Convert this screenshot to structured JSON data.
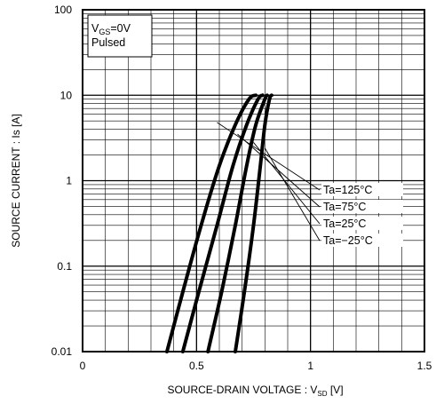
{
  "chart_data": {
    "type": "line",
    "x_scale": "linear",
    "y_scale": "log",
    "xlim": [
      0,
      1.5
    ],
    "ylim": [
      0.01,
      100
    ],
    "xlabel_main": "SOURCE-DRAIN VOLTAGE : V",
    "xlabel_sub": "SD",
    "xlabel_unit": " [V]",
    "ylabel": "SOURCE CURRENT : Is [A]",
    "x_ticks": [
      {
        "value": 0,
        "label": "0"
      },
      {
        "value": 0.5,
        "label": "0.5"
      },
      {
        "value": 1,
        "label": "1"
      },
      {
        "value": 1.5,
        "label": "1.5"
      }
    ],
    "y_ticks": [
      {
        "value": 0.01,
        "label": "0.01"
      },
      {
        "value": 0.1,
        "label": "0.1"
      },
      {
        "value": 1,
        "label": "1"
      },
      {
        "value": 10,
        "label": "10"
      },
      {
        "value": 100,
        "label": "100"
      }
    ],
    "grid": true,
    "conditions": {
      "line1_main": "V",
      "line1_sub": "GS",
      "line1_rest": "=0V",
      "line2": "Pulsed"
    },
    "series": [
      {
        "name": "Ta=125°C",
        "x": [
          0.37,
          0.44,
          0.52,
          0.6,
          0.67,
          0.73,
          0.76
        ],
        "y": [
          0.01,
          0.05,
          0.3,
          1.5,
          4.5,
          9.0,
          10
        ]
      },
      {
        "name": "Ta=75°C",
        "x": [
          0.44,
          0.51,
          0.59,
          0.66,
          0.72,
          0.77,
          0.79
        ],
        "y": [
          0.01,
          0.05,
          0.3,
          1.5,
          4.5,
          9.0,
          10
        ]
      },
      {
        "name": "Ta=25°C",
        "x": [
          0.55,
          0.61,
          0.67,
          0.72,
          0.76,
          0.8,
          0.81
        ],
        "y": [
          0.01,
          0.05,
          0.3,
          1.5,
          4.5,
          9.0,
          10
        ]
      },
      {
        "name": "Ta=-25°C",
        "x": [
          0.67,
          0.71,
          0.75,
          0.78,
          0.8,
          0.82,
          0.83
        ],
        "y": [
          0.01,
          0.05,
          0.3,
          1.5,
          4.5,
          9.0,
          10
        ]
      }
    ],
    "annotations": [
      {
        "text": "Ta=125°C",
        "target_x": 0.59,
        "target_y": 4.8
      },
      {
        "text": "Ta=75°C",
        "target_x": 0.68,
        "target_y": 3.5
      },
      {
        "text": "Ta=25°C",
        "target_x": 0.75,
        "target_y": 2.8
      },
      {
        "text": "Ta=−25°C",
        "target_x": 0.8,
        "target_y": 2.4
      }
    ]
  }
}
